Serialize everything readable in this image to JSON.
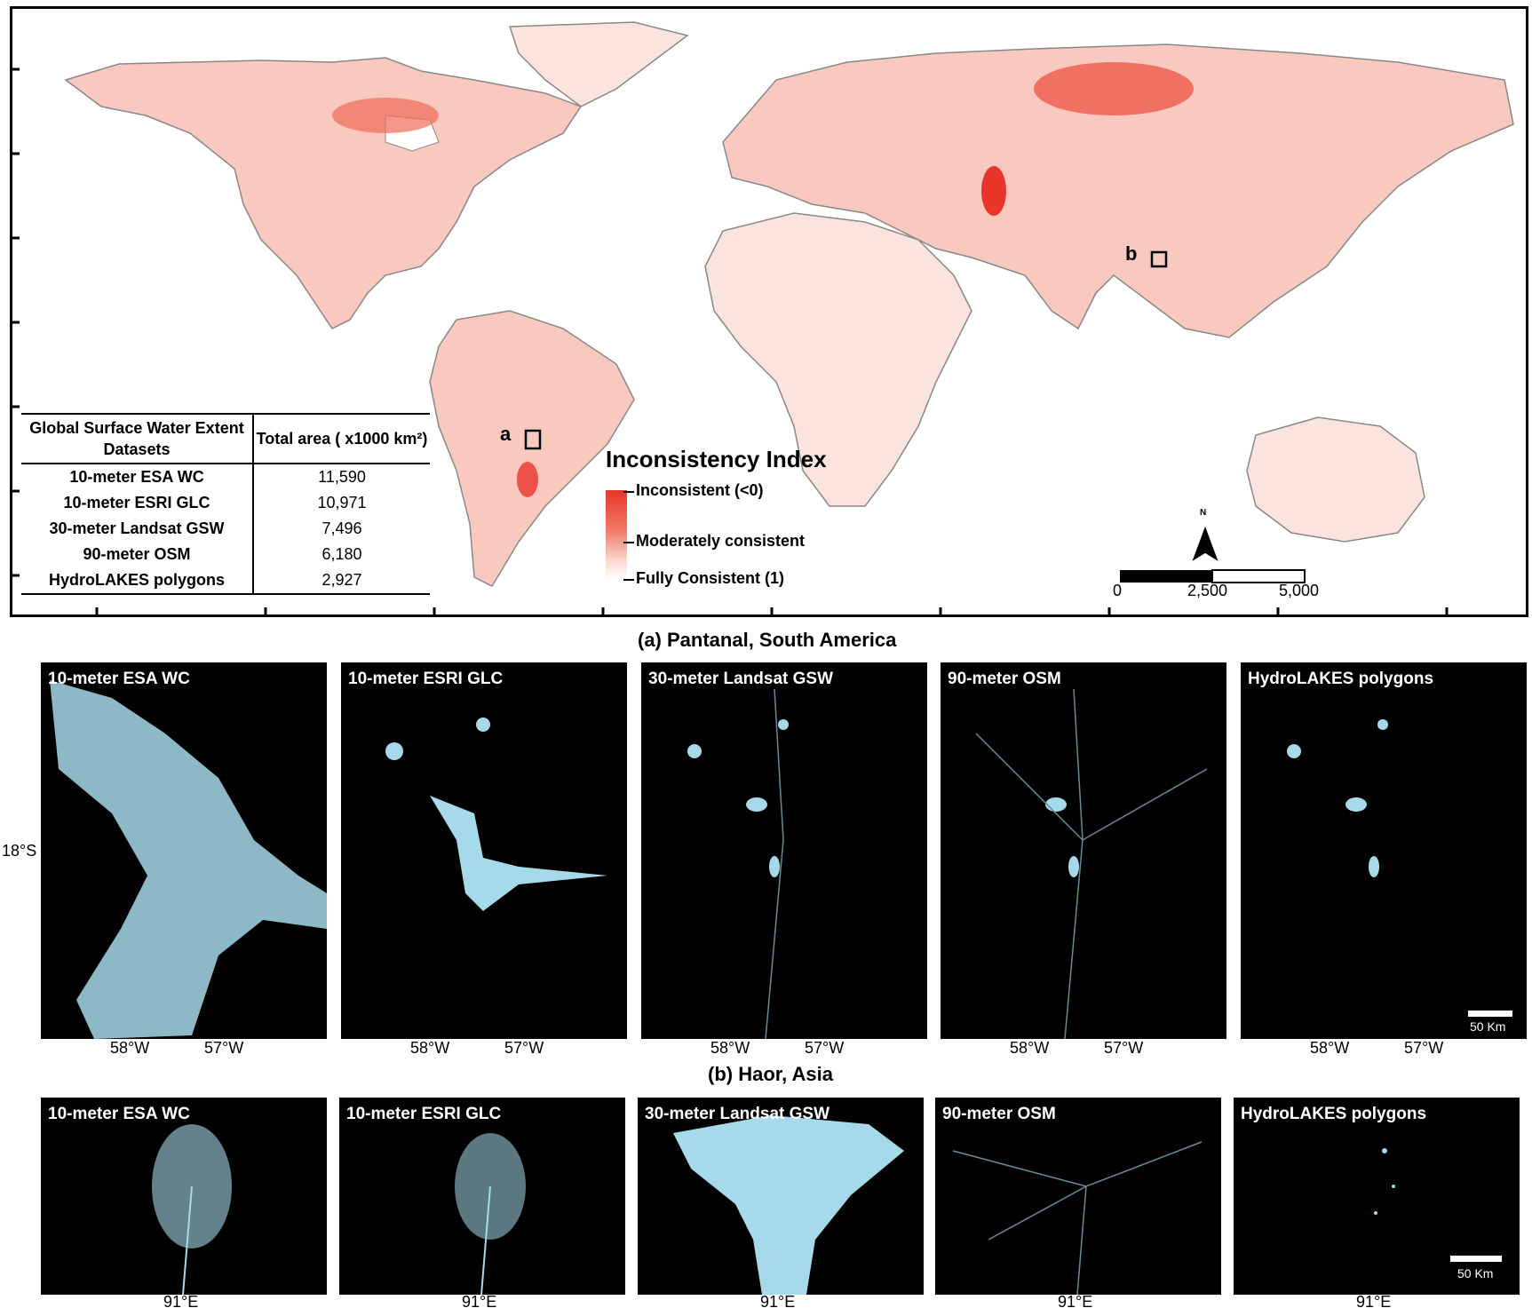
{
  "table": {
    "header_col1": "Global Surface Water Extent Datasets",
    "header_col2": "Total area ( x1000 km²)",
    "rows": [
      {
        "name": "10-meter ESA WC",
        "value": "11,590"
      },
      {
        "name": "10-meter ESRI GLC",
        "value": "10,971"
      },
      {
        "name": "30-meter Landsat GSW",
        "value": "7,496"
      },
      {
        "name": "90-meter OSM",
        "value": "6,180"
      },
      {
        "name": "HydroLAKES polygons",
        "value": "2,927"
      }
    ]
  },
  "legend": {
    "title": "Inconsistency Index",
    "high": "Inconsistent (<0)",
    "mid": "Moderately consistent",
    "low": "Fully Consistent (1)",
    "colors": {
      "high": "#e8352a",
      "mid": "#f07a66",
      "low": "#ffffff"
    }
  },
  "map": {
    "marker_a": "a",
    "marker_b": "b",
    "north": "N",
    "scale": {
      "l0": "0",
      "l1": "2,500",
      "l2": "5,000"
    }
  },
  "section_a": {
    "title": "(a) Pantanal, South America",
    "lat_label": "18°S",
    "lon1": "58°W",
    "lon2": "57°W",
    "scale": "50 Km"
  },
  "section_b": {
    "title": "(b) Haor, Asia",
    "lon": "91°E",
    "scale": "50 Km"
  },
  "datasets": [
    "10-meter ESA WC",
    "10-meter ESRI GLC",
    "30-meter Landsat GSW",
    "90-meter OSM",
    "HydroLAKES polygons"
  ],
  "water_color": "#a6d9ea"
}
